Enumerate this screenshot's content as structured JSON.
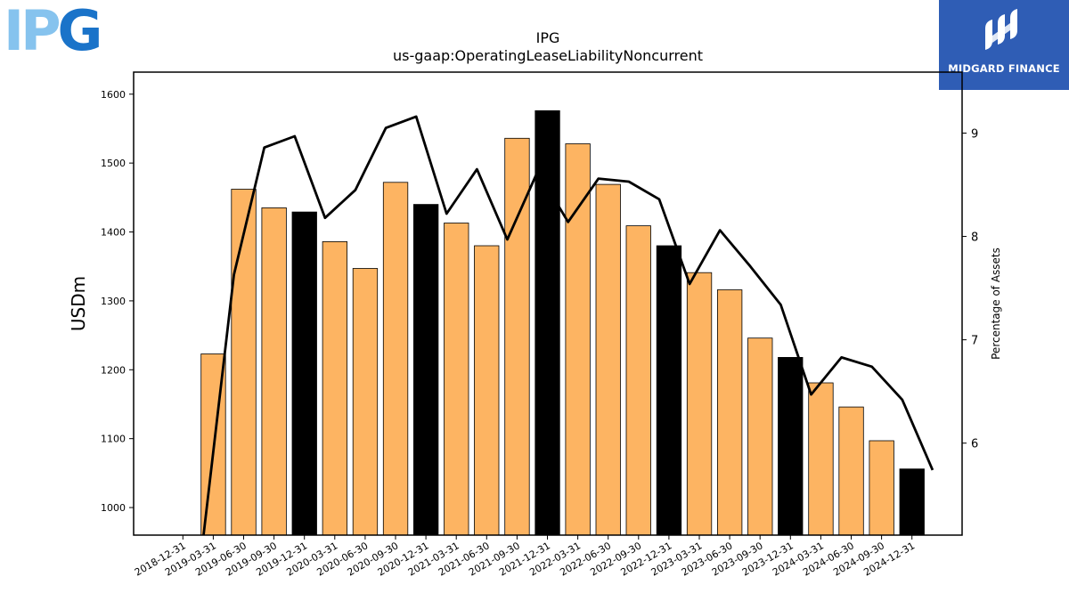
{
  "logos": {
    "left": {
      "name": "IPG logo",
      "text_ip": "IP",
      "text_g": "G",
      "color_light": "#86c3ee",
      "color_dark": "#1a73c9"
    },
    "right": {
      "name": "Midgard Finance logo",
      "text": "MIDGARD FINANCE",
      "background": "#2f5db5"
    }
  },
  "chart_data": {
    "type": "bar",
    "title": "IPG",
    "subtitle": "us-gaap:OperatingLeaseLiabilityNoncurrent",
    "ylabel": "USDm",
    "y2label": "Percentage of Assets",
    "ylim": [
      960,
      1632
    ],
    "y2lim": [
      5.11,
      9.59
    ],
    "yticks": [
      1000,
      1100,
      1200,
      1300,
      1400,
      1500,
      1600
    ],
    "y2ticks": [
      6,
      7,
      8,
      9
    ],
    "categories": [
      "2018-12-31",
      "2019-03-31",
      "2019-06-30",
      "2019-09-30",
      "2019-12-31",
      "2020-03-31",
      "2020-06-30",
      "2020-09-30",
      "2020-12-31",
      "2021-03-31",
      "2021-06-30",
      "2021-09-30",
      "2021-12-31",
      "2022-03-31",
      "2022-06-30",
      "2022-09-30",
      "2022-12-31",
      "2023-03-31",
      "2023-06-30",
      "2023-09-30",
      "2023-12-31",
      "2024-03-31",
      "2024-06-30",
      "2024-09-30",
      "2024-12-31"
    ],
    "series": [
      {
        "type": "bar",
        "axis": "left",
        "values": [
          null,
          1223,
          1462,
          1435,
          1429,
          1386,
          1347,
          1472,
          1440,
          1413,
          1380,
          1536,
          1576,
          1528,
          1469,
          1409,
          1380,
          1341,
          1316,
          1246,
          1218,
          1181,
          1146,
          1097,
          1056
        ],
        "colors": {
          "quarter": "#fdb462",
          "year_end": "#000000"
        }
      },
      {
        "type": "line",
        "axis": "right",
        "color": "#000000",
        "values": [
          5.11,
          7.63,
          8.86,
          8.97,
          8.18,
          8.45,
          9.05,
          9.16,
          8.22,
          8.65,
          7.97,
          8.63,
          8.14,
          8.56,
          8.53,
          8.36,
          7.54,
          8.06,
          7.71,
          7.34,
          6.47,
          6.83,
          6.74,
          6.42,
          5.74
        ]
      }
    ],
    "grid": false,
    "legend": "none"
  }
}
